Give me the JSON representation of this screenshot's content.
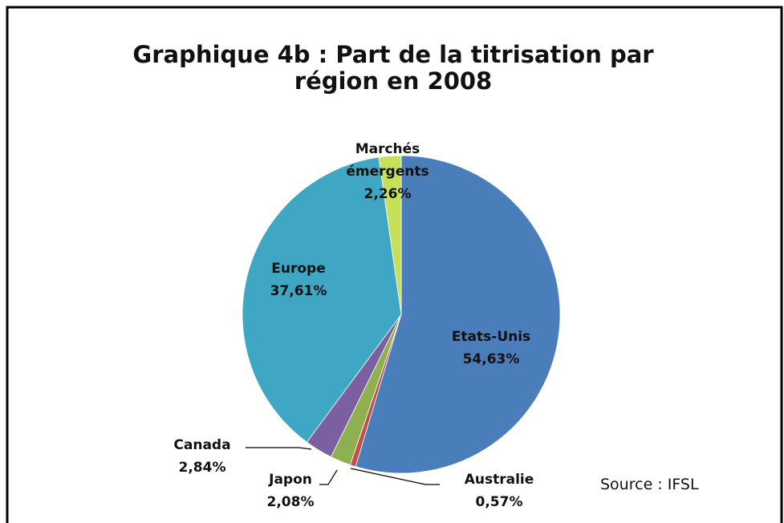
{
  "chart_data": {
    "type": "pie",
    "title": "Graphique 4b : Part de la titrisation par région en 2008",
    "categories": [
      "Etats-Unis",
      "Australie",
      "Japon",
      "Canada",
      "Europe",
      "Marchés émergents"
    ],
    "values": [
      54.63,
      0.57,
      2.08,
      2.84,
      37.61,
      2.26
    ],
    "value_labels": [
      "54,63%",
      "0,57%",
      "2,08%",
      "2,84%",
      "37,61%",
      "2,26%"
    ],
    "colors": [
      "#4a7ebb",
      "#c0504d",
      "#8fb04f",
      "#7b5fa0",
      "#3fa7c3",
      "#c6e05a"
    ],
    "source": "Source : IFSL"
  }
}
